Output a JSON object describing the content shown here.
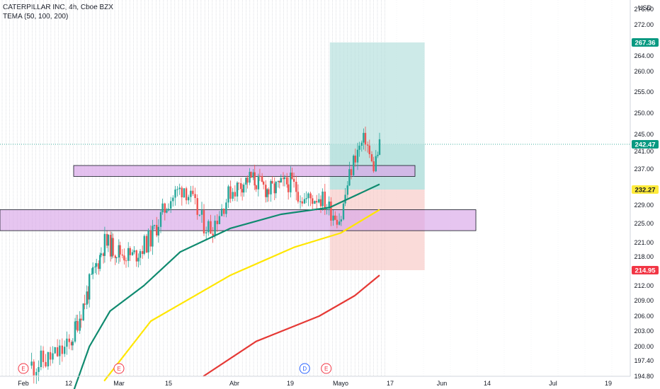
{
  "legend": {
    "symbol": "CATERPILLAR INC, 4h, Cboe BZX",
    "indicator": "TEMA (50, 100, 200)"
  },
  "currency": "USD",
  "colors": {
    "candle_up": "#26a69a",
    "candle_down": "#ef5350",
    "tema_fast": "#0f8a6f",
    "tema_mid": "#ffe600",
    "tema_slow": "#e53935",
    "zone_fill": "#d9a6e8",
    "target_fill": "#b2dfdb",
    "stop_fill": "#f8c8c4",
    "tag_green": "#089981",
    "tag_yellow": "#ffeb3b",
    "tag_red": "#f23645",
    "event_e": "#f23645",
    "event_d": "#2962ff"
  },
  "chart_data": {
    "type": "candlestick",
    "title": "CATERPILLAR INC, 4h, Cboe BZX",
    "y_ticks": [
      194.8,
      197.4,
      200.0,
      203.0,
      206.0,
      209.0,
      212.0,
      214.95,
      218.0,
      221.0,
      225.0,
      229.0,
      232.27,
      237.0,
      241.0,
      242.47,
      245.0,
      250.0,
      255.0,
      260.0,
      264.0,
      267.36,
      272.0,
      276.0
    ],
    "ylim": [
      194.0,
      278.0
    ],
    "y_scale": "log",
    "x_ticks": [
      "Feb",
      "12",
      "Mar",
      "15",
      "Abr",
      "19",
      "Mayo",
      "17",
      "Jun",
      "14",
      "Jul",
      "19"
    ],
    "price_tags": [
      {
        "value": "267.36",
        "color": "green"
      },
      {
        "value": "242.47",
        "color": "green"
      },
      {
        "value": "232.27",
        "color": "yellow"
      },
      {
        "value": "214.95",
        "color": "red"
      }
    ],
    "events": [
      "E",
      "E",
      "D",
      "E"
    ],
    "close_series": [
      {
        "date": "2021-02-01",
        "close": 196.0
      },
      {
        "date": "2021-02-08",
        "close": 198.0
      },
      {
        "date": "2021-02-12",
        "close": 200.0
      },
      {
        "date": "2021-02-19",
        "close": 212.0
      },
      {
        "date": "2021-02-24",
        "close": 221.0
      },
      {
        "date": "2021-03-01",
        "close": 219.0
      },
      {
        "date": "2021-03-05",
        "close": 218.0
      },
      {
        "date": "2021-03-10",
        "close": 222.0
      },
      {
        "date": "2021-03-15",
        "close": 230.0
      },
      {
        "date": "2021-03-19",
        "close": 233.0
      },
      {
        "date": "2021-03-24",
        "close": 225.0
      },
      {
        "date": "2021-03-26",
        "close": 224.0
      },
      {
        "date": "2021-03-31",
        "close": 232.0
      },
      {
        "date": "2021-04-06",
        "close": 235.0
      },
      {
        "date": "2021-04-12",
        "close": 232.0
      },
      {
        "date": "2021-04-19",
        "close": 234.0
      },
      {
        "date": "2021-04-23",
        "close": 230.0
      },
      {
        "date": "2021-04-27",
        "close": 231.0
      },
      {
        "date": "2021-04-30",
        "close": 228.0
      },
      {
        "date": "2021-05-03",
        "close": 226.0
      },
      {
        "date": "2021-05-05",
        "close": 234.0
      },
      {
        "date": "2021-05-07",
        "close": 240.0
      },
      {
        "date": "2021-05-10",
        "close": 244.0
      },
      {
        "date": "2021-05-12",
        "close": 237.0
      },
      {
        "date": "2021-05-14",
        "close": 242.0
      }
    ],
    "tema_50": [
      {
        "date": "2021-02-12",
        "value": 190.0
      },
      {
        "date": "2021-02-19",
        "value": 200.0
      },
      {
        "date": "2021-02-26",
        "value": 207.0
      },
      {
        "date": "2021-03-08",
        "value": 212.0
      },
      {
        "date": "2021-03-18",
        "value": 219.0
      },
      {
        "date": "2021-03-31",
        "value": 224.0
      },
      {
        "date": "2021-04-16",
        "value": 227.0
      },
      {
        "date": "2021-04-30",
        "value": 228.5
      },
      {
        "date": "2021-05-14",
        "value": 233.5
      }
    ],
    "tema_100": [
      {
        "date": "2021-02-24",
        "value": 194.0
      },
      {
        "date": "2021-03-10",
        "value": 205.0
      },
      {
        "date": "2021-03-31",
        "value": 214.0
      },
      {
        "date": "2021-04-20",
        "value": 220.0
      },
      {
        "date": "2021-05-03",
        "value": 223.0
      },
      {
        "date": "2021-05-14",
        "value": 228.0
      }
    ],
    "tema_200": [
      {
        "date": "2021-03-24",
        "value": 194.8
      },
      {
        "date": "2021-04-08",
        "value": 201.0
      },
      {
        "date": "2021-04-27",
        "value": 206.0
      },
      {
        "date": "2021-05-07",
        "value": 210.0
      },
      {
        "date": "2021-05-14",
        "value": 214.0
      }
    ],
    "zones": [
      {
        "name": "upper",
        "low": 235.3,
        "high": 237.8
      },
      {
        "name": "lower",
        "low": 223.5,
        "high": 228.0
      }
    ],
    "position": {
      "entry": 232.27,
      "target": 267.36,
      "stop": 214.95
    },
    "grid": "vertical"
  }
}
